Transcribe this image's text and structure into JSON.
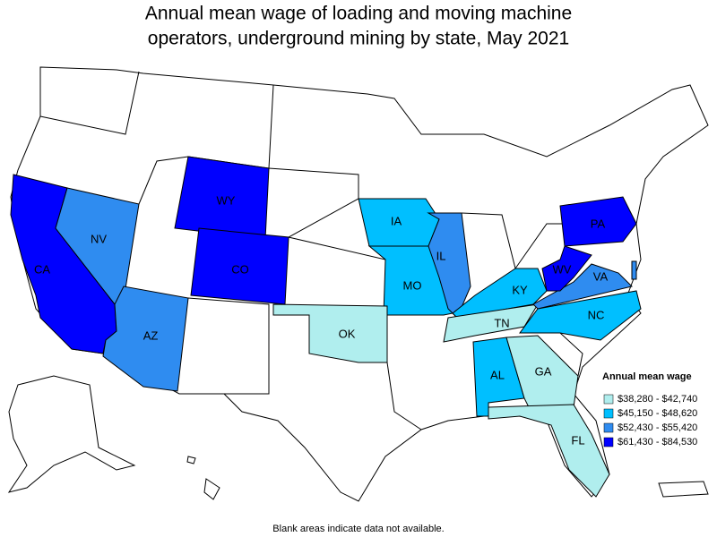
{
  "title": [
    "Annual mean wage of loading and moving machine",
    "operators, underground mining by state, May 2021"
  ],
  "legend": {
    "title": "Annual mean wage",
    "items": [
      {
        "label": "$38,280 - $42,740",
        "color": "#b0eeee"
      },
      {
        "label": "$45,150 - $48,620",
        "color": "#00bfff"
      },
      {
        "label": "$52,430 - $55,420",
        "color": "#2f8cf0"
      },
      {
        "label": "$61,430 - $84,530",
        "color": "#0000ff"
      }
    ]
  },
  "states": [
    {
      "label": "CA",
      "level": 3
    },
    {
      "label": "NV",
      "level": 2
    },
    {
      "label": "AZ",
      "level": 2
    },
    {
      "label": "WY",
      "level": 3
    },
    {
      "label": "CO",
      "level": 3
    },
    {
      "label": "IA",
      "level": 1
    },
    {
      "label": "MO",
      "level": 1
    },
    {
      "label": "IL",
      "level": 2
    },
    {
      "label": "KY",
      "level": 1
    },
    {
      "label": "TN",
      "level": 0
    },
    {
      "label": "AL",
      "level": 1
    },
    {
      "label": "GA",
      "level": 0
    },
    {
      "label": "FL",
      "level": 0
    },
    {
      "label": "OK",
      "level": 0
    },
    {
      "label": "NC",
      "level": 1
    },
    {
      "label": "VA",
      "level": 2
    },
    {
      "label": "WV",
      "level": 3
    },
    {
      "label": "PA",
      "level": 3
    }
  ],
  "footnote": "Blank areas indicate data not available."
}
